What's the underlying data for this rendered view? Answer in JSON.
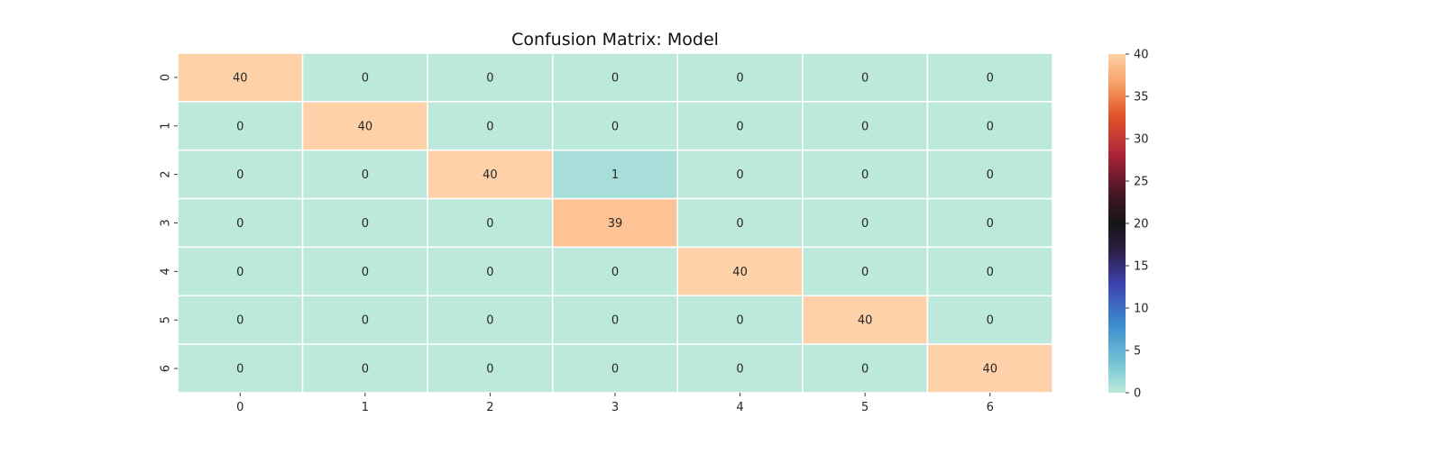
{
  "chart_data": {
    "type": "heatmap",
    "title": "Confusion Matrix: Model",
    "xlabel": "",
    "ylabel": "",
    "x_categories": [
      "0",
      "1",
      "2",
      "3",
      "4",
      "5",
      "6"
    ],
    "y_categories": [
      "0",
      "1",
      "2",
      "3",
      "4",
      "5",
      "6"
    ],
    "values": [
      [
        40,
        0,
        0,
        0,
        0,
        0,
        0
      ],
      [
        0,
        40,
        0,
        0,
        0,
        0,
        0
      ],
      [
        0,
        0,
        40,
        1,
        0,
        0,
        0
      ],
      [
        0,
        0,
        0,
        39,
        0,
        0,
        0
      ],
      [
        0,
        0,
        0,
        0,
        40,
        0,
        0
      ],
      [
        0,
        0,
        0,
        0,
        0,
        40,
        0
      ],
      [
        0,
        0,
        0,
        0,
        0,
        0,
        40
      ]
    ],
    "annotations": true,
    "colormap": "icefire",
    "colorbar": {
      "range": [
        0,
        40
      ],
      "ticks": [
        "0",
        "5",
        "10",
        "15",
        "20",
        "25",
        "30",
        "35",
        "40"
      ],
      "placement": "right"
    },
    "grid_line_color": "#ffffff"
  }
}
